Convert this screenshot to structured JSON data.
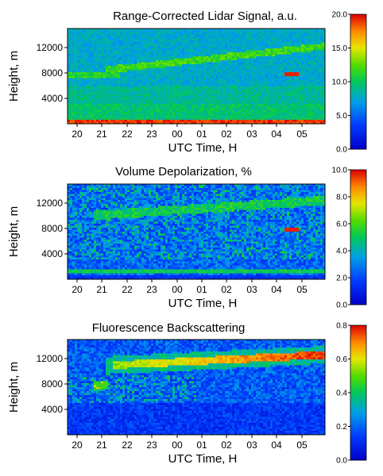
{
  "chart_data": [
    {
      "type": "heatmap",
      "title": "Range-Corrected Lidar Signal, a.u.",
      "xlabel": "UTC Time, H",
      "ylabel": "Height, m",
      "x_ticks": [
        "20",
        "21",
        "22",
        "23",
        "00",
        "01",
        "02",
        "03",
        "04",
        "05"
      ],
      "y_ticks": [
        4000,
        8000,
        12000
      ],
      "ylim": [
        0,
        15000
      ],
      "colorbar": {
        "min": 0.0,
        "max": 20.0,
        "ticks": [
          "0.0",
          "5.0",
          "10.0",
          "15.0",
          "20.0"
        ]
      },
      "features": [
        {
          "kind": "boundary layer",
          "height_m": 500,
          "level": 0.95
        },
        {
          "kind": "layer",
          "from_height_m": 7500,
          "to_height_m": 12200,
          "level": 0.5
        },
        {
          "kind": "cloud",
          "time": "04.5",
          "height_m": 7800,
          "level": 1.0
        }
      ]
    },
    {
      "type": "heatmap",
      "title": "Volume Depolarization, %",
      "xlabel": "UTC Time, H",
      "ylabel": "Height, m",
      "x_ticks": [
        "20",
        "21",
        "22",
        "23",
        "00",
        "01",
        "02",
        "03",
        "04",
        "05"
      ],
      "y_ticks": [
        4000,
        8000,
        12000
      ],
      "ylim": [
        0,
        15000
      ],
      "colorbar": {
        "min": 0.0,
        "max": 10.0,
        "ticks": [
          "0.0",
          "2.0",
          "4.0",
          "6.0",
          "8.0",
          "10.0"
        ]
      },
      "features": [
        {
          "kind": "boundary layer",
          "height_m": 1200,
          "level": 0.45
        },
        {
          "kind": "layer",
          "from_height_m": 9500,
          "to_height_m": 12400,
          "level": 0.5
        },
        {
          "kind": "cloud",
          "time": "04.5",
          "height_m": 7800,
          "level": 1.0
        }
      ]
    },
    {
      "type": "heatmap",
      "title": "Fluorescence Backscattering",
      "xlabel": "UTC Time, H",
      "ylabel": "Height, m",
      "x_ticks": [
        "20",
        "21",
        "22",
        "23",
        "00",
        "01",
        "02",
        "03",
        "04",
        "05"
      ],
      "y_ticks": [
        4000,
        8000,
        12000
      ],
      "ylim": [
        0,
        15000
      ],
      "colorbar": {
        "min": 0.0,
        "max": 0.8,
        "ticks": [
          "0.0",
          "0.2",
          "0.4",
          "0.6",
          "0.8"
        ]
      },
      "features": [
        {
          "kind": "layer",
          "from_height_m": 10500,
          "to_height_m": 12600,
          "level": 0.85
        },
        {
          "kind": "patch",
          "time": "21",
          "height_m": 7800,
          "level": 0.5
        }
      ]
    }
  ]
}
